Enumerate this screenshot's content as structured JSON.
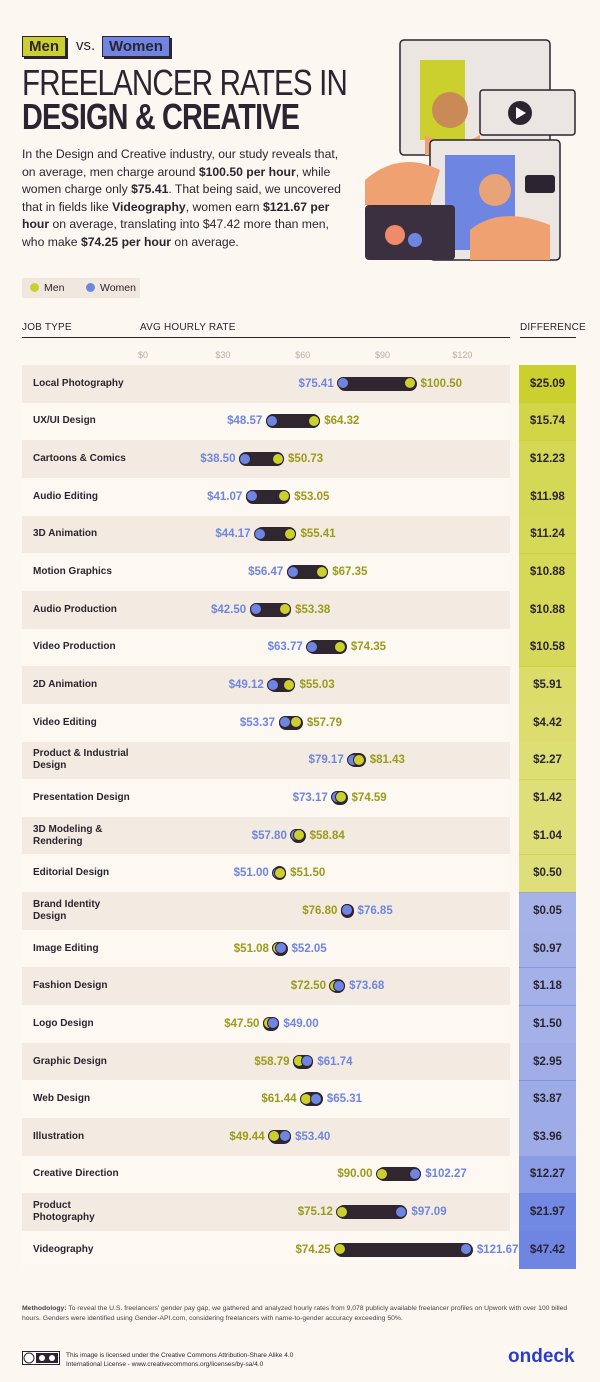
{
  "header": {
    "tag_men": "Men",
    "tag_vs": "vs.",
    "tag_women": "Women",
    "title_line1": "FREELANCER RATES IN",
    "title_line2": "DESIGN & CREATIVE"
  },
  "intro": [
    {
      "text": "In the Design and Creative industry, our study reveals that, on average, men charge around ",
      "bold": false
    },
    {
      "text": "$100.50 per hour",
      "bold": true
    },
    {
      "text": ", while women charge only ",
      "bold": false
    },
    {
      "text": "$75.41",
      "bold": true
    },
    {
      "text": ". That being said, we uncovered that in fields like ",
      "bold": false
    },
    {
      "text": "Videography",
      "bold": true
    },
    {
      "text": ", women earn ",
      "bold": false
    },
    {
      "text": "$121.67 per hour",
      "bold": true
    },
    {
      "text": " on average, translating into $47.42 more than men, who make ",
      "bold": false
    },
    {
      "text": "$74.25 per hour",
      "bold": true
    },
    {
      "text": " on average.",
      "bold": false
    }
  ],
  "chart_data": {
    "type": "dumbbell",
    "category_label": "JOB TYPE",
    "x_label": "AVG HOURLY RATE",
    "categories": [
      "Local Photography",
      "UX/UI Design",
      "Cartoons & Comics",
      "Audio Editing",
      "3D Animation",
      "Motion Graphics",
      "Audio Production",
      "Video Production",
      "2D Animation",
      "Video Editing",
      "Product & Industrial Design",
      "Presentation Design",
      "3D Modeling & Rendering",
      "Editorial Design",
      "Brand Identity Design",
      "Image Editing",
      "Fashion Design",
      "Logo Design",
      "Graphic Design",
      "Web Design",
      "Illustration",
      "Creative Direction",
      "Product Photography",
      "Videography"
    ],
    "series": [
      {
        "name": "Men",
        "color": "#cbd02e",
        "label_color": "#9c9a1c",
        "values": [
          100.5,
          64.32,
          50.73,
          53.05,
          55.41,
          67.35,
          53.38,
          74.35,
          55.03,
          57.79,
          81.43,
          74.59,
          58.84,
          51.5,
          76.8,
          51.08,
          72.5,
          47.5,
          58.79,
          61.44,
          49.44,
          90.0,
          75.12,
          74.25
        ],
        "value_labels": [
          "$100.50",
          "$64.32",
          "$50.73",
          "$53.05",
          "$55.41",
          "$67.35",
          "$53.38",
          "$74.35",
          "$55.03",
          "$57.79",
          "$81.43",
          "$74.59",
          "$58.84",
          "$51.50",
          "$76.80",
          "$51.08",
          "$72.50",
          "$47.50",
          "$58.79",
          "$61.44",
          "$49.44",
          "$90.00",
          "$75.12",
          "$74.25"
        ]
      },
      {
        "name": "Women",
        "color": "#6e86e2",
        "label_color": "#6e86e2",
        "values": [
          75.41,
          48.57,
          38.5,
          41.07,
          44.17,
          56.47,
          42.5,
          63.77,
          49.12,
          53.37,
          79.17,
          73.17,
          57.8,
          51.0,
          76.85,
          52.05,
          73.68,
          49.0,
          61.74,
          65.31,
          53.4,
          102.27,
          97.09,
          121.67
        ],
        "value_labels": [
          "$75.41",
          "$48.57",
          "$38.50",
          "$41.07",
          "$44.17",
          "$56.47",
          "$42.50",
          "$63.77",
          "$49.12",
          "$53.37",
          "$79.17",
          "$73.17",
          "$57.80",
          "$51.00",
          "$76.85",
          "$52.05",
          "$73.68",
          "$49.00",
          "$61.74",
          "$65.31",
          "$53.40",
          "$102.27",
          "$97.09",
          "$121.67"
        ]
      }
    ],
    "difference": {
      "name": "DIFFERENCE",
      "values": [
        25.09,
        15.74,
        12.23,
        11.98,
        11.24,
        10.88,
        10.88,
        10.58,
        5.91,
        4.42,
        2.27,
        1.42,
        1.04,
        0.5,
        0.05,
        0.97,
        1.18,
        1.5,
        2.95,
        3.87,
        3.96,
        12.27,
        21.97,
        47.42
      ],
      "value_labels": [
        "$25.09",
        "$15.74",
        "$12.23",
        "$11.98",
        "$11.24",
        "$10.88",
        "$10.88",
        "$10.58",
        "$5.91",
        "$4.42",
        "$2.27",
        "$1.42",
        "$1.04",
        "$0.50",
        "$0.05",
        "$0.97",
        "$1.18",
        "$1.50",
        "$2.95",
        "$3.87",
        "$3.96",
        "$12.27",
        "$21.97",
        "$47.42"
      ]
    },
    "xlim": [
      0,
      136
    ],
    "xticks": [
      {
        "value": 0,
        "label": "$0"
      },
      {
        "value": 30,
        "label": "$30"
      },
      {
        "value": 60,
        "label": "$60"
      },
      {
        "value": 90,
        "label": "$90"
      },
      {
        "value": 120,
        "label": "$120"
      }
    ],
    "grid": false
  },
  "methodology": {
    "label": "Methodology:",
    "text": "To reveal the U.S. freelancers' gender pay gap, we gathered and analyzed hourly rates from 9,078 publicly available freelancer profiles on Upwork with over 100 billed hours. Genders were identified using Gender-API.com, considering freelancers with name-to-gender accuracy exceeding 50%."
  },
  "license": "This image is licensed under the Creative Commons Attribution-Share Alike 4.0 International License - www.creativecommons.org/licenses/by-sa/4.0",
  "brand": "ondeck"
}
